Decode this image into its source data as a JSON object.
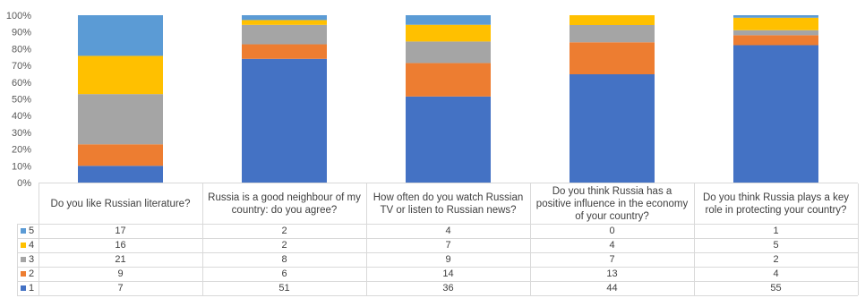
{
  "chart_data": {
    "type": "bar",
    "stacked": "percent",
    "categories": [
      "Do you like Russian literature?",
      "Russia is a good neighbour of my country: do you agree?",
      "How often do you watch Russian TV or listen to Russian news?",
      "Do you think Russia has a positive influence in the economy of your country?",
      "Do you think Russia plays a key role in protecting your country?"
    ],
    "series": [
      {
        "name": "1",
        "color": "#4472C4",
        "values": [
          7,
          51,
          36,
          44,
          55
        ]
      },
      {
        "name": "2",
        "color": "#ED7D31",
        "values": [
          9,
          6,
          14,
          13,
          4
        ]
      },
      {
        "name": "3",
        "color": "#A5A5A5",
        "values": [
          21,
          8,
          9,
          7,
          2
        ]
      },
      {
        "name": "4",
        "color": "#FFC000",
        "values": [
          16,
          2,
          7,
          4,
          5
        ]
      },
      {
        "name": "5",
        "color": "#5B9BD5",
        "values": [
          17,
          2,
          4,
          0,
          1
        ]
      }
    ],
    "yticks": [
      "0%",
      "10%",
      "20%",
      "30%",
      "40%",
      "50%",
      "60%",
      "70%",
      "80%",
      "90%",
      "100%"
    ],
    "ylim": [
      0,
      100
    ],
    "grid": false,
    "data_table": true,
    "legend": "data-table-left"
  }
}
